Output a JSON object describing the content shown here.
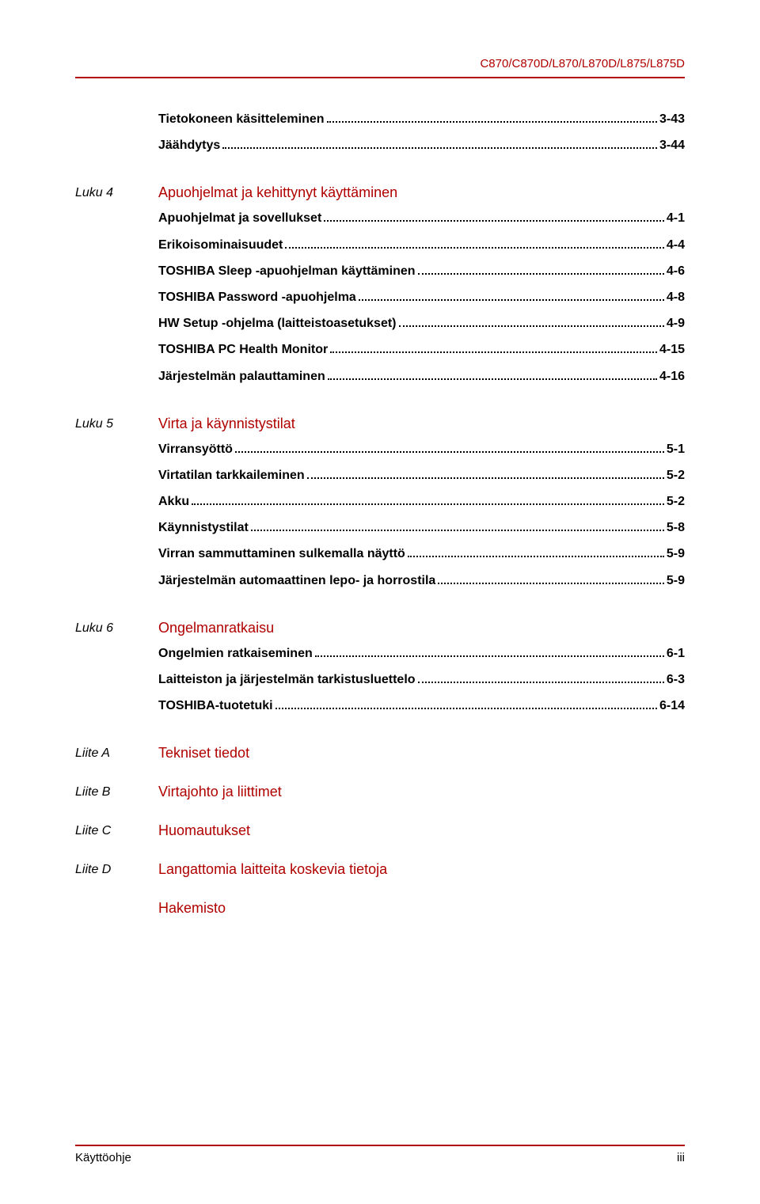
{
  "header": {
    "model_label": "C870/C870D/L870/L870D/L875/L875D"
  },
  "colors": {
    "accent": "#b00000",
    "text": "#000000",
    "background": "#ffffff"
  },
  "typography": {
    "body_fontsize": 16,
    "title_fontsize": 18,
    "header_fontsize": 15,
    "footer_fontsize": 15,
    "entry_weight": "bold",
    "chapter_style": "italic"
  },
  "pre_block": {
    "entries": [
      {
        "text": "Tietokoneen käsitteleminen",
        "page": "3-43"
      },
      {
        "text": "Jäähdytys",
        "page": "3-44"
      }
    ]
  },
  "chapters": [
    {
      "label": "Luku 4",
      "title": "Apuohjelmat ja kehittynyt käyttäminen",
      "entries": [
        {
          "text": "Apuohjelmat ja sovellukset",
          "page": "4-1"
        },
        {
          "text": "Erikoisominaisuudet",
          "page": "4-4"
        },
        {
          "text": "TOSHIBA Sleep -apuohjelman käyttäminen",
          "page": "4-6"
        },
        {
          "text": "TOSHIBA Password -apuohjelma",
          "page": "4-8"
        },
        {
          "text": "HW Setup -ohjelma (laitteistoasetukset)",
          "page": "4-9"
        },
        {
          "text": "TOSHIBA PC Health Monitor",
          "page": "4-15"
        },
        {
          "text": "Järjestelmän palauttaminen",
          "page": "4-16"
        }
      ]
    },
    {
      "label": "Luku 5",
      "title": "Virta ja käynnistystilat",
      "entries": [
        {
          "text": "Virransyöttö",
          "page": "5-1"
        },
        {
          "text": "Virtatilan tarkkaileminen",
          "page": "5-2"
        },
        {
          "text": "Akku",
          "page": "5-2"
        },
        {
          "text": "Käynnistystilat",
          "page": "5-8"
        },
        {
          "text": "Virran sammuttaminen sulkemalla näyttö",
          "page": "5-9"
        },
        {
          "text": "Järjestelmän automaattinen lepo- ja horrostila",
          "page": "5-9"
        }
      ]
    },
    {
      "label": "Luku 6",
      "title": "Ongelmanratkaisu",
      "entries": [
        {
          "text": "Ongelmien ratkaiseminen",
          "page": "6-1"
        },
        {
          "text": "Laitteiston ja järjestelmän tarkistusluettelo",
          "page": "6-3"
        },
        {
          "text": "TOSHIBA-tuotetuki",
          "page": "6-14"
        }
      ]
    }
  ],
  "appendices": [
    {
      "label": "Liite A",
      "title": "Tekniset tiedot"
    },
    {
      "label": "Liite B",
      "title": "Virtajohto ja liittimet"
    },
    {
      "label": "Liite C",
      "title": "Huomautukset"
    },
    {
      "label": "Liite D",
      "title": "Langattomia laitteita koskevia tietoja"
    }
  ],
  "index_title": "Hakemisto",
  "footer": {
    "left": "Käyttöohje",
    "right": "iii"
  }
}
